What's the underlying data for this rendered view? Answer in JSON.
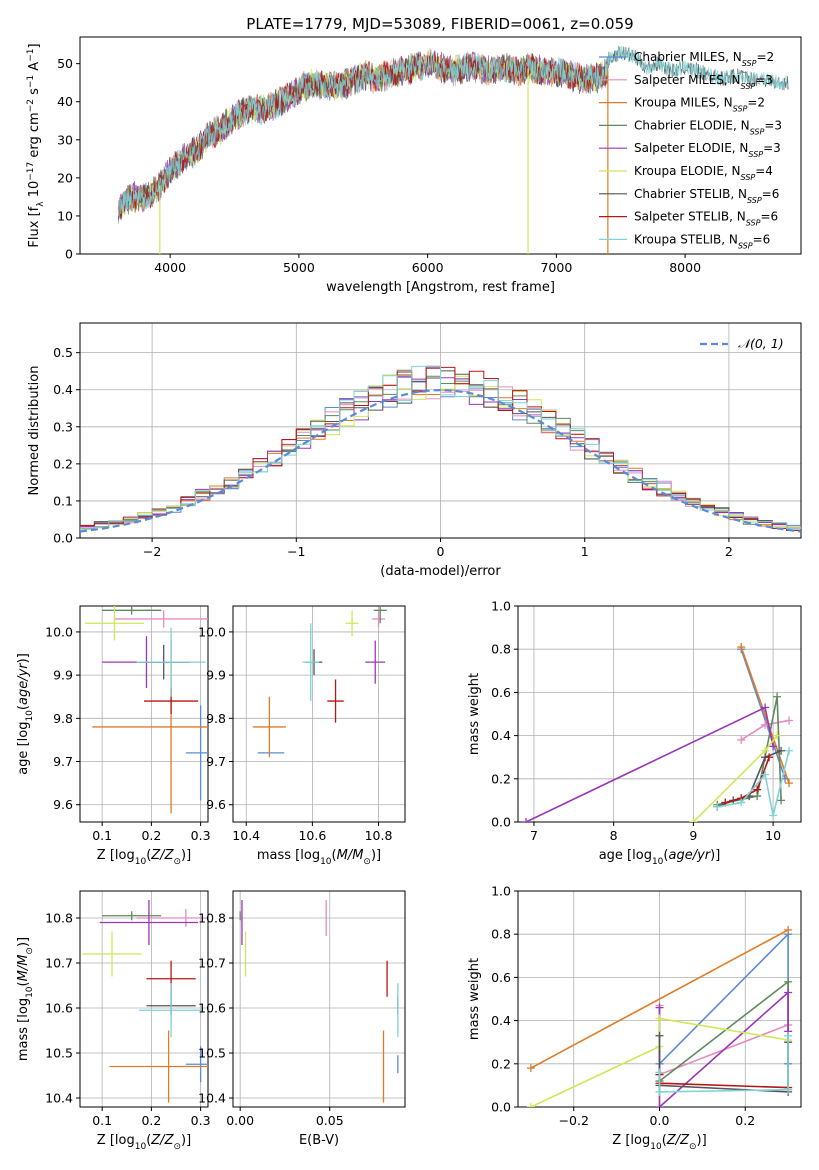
{
  "figure_title": "PLATE=1779, MJD=53089, FIBERID=0061, z=0.059",
  "colors": {
    "Chabrier MILES": "#5b8bd6",
    "Salpeter MILES": "#e58bc2",
    "Kroupa MILES": "#e07b27",
    "Chabrier ELODIE": "#5e8a5e",
    "Salpeter ELODIE": "#9b36b7",
    "Kroupa ELODIE": "#cfe85a",
    "Chabrier STELIB": "#555555",
    "Salpeter STELIB": "#b51717",
    "Kroupa STELIB": "#7ed3d6"
  },
  "chart_data": [
    {
      "id": "spectrum",
      "type": "line",
      "title": "",
      "xlabel": "wavelength [Angstrom, rest frame]",
      "ylabel": "Flux [f_λ 10^-17 erg cm^-2 s^-1 A^-1]",
      "xlim": [
        3300,
        8900
      ],
      "ylim": [
        0,
        57
      ],
      "xticks": [
        4000,
        5000,
        6000,
        7000,
        8000
      ],
      "yticks": [
        0,
        10,
        20,
        30,
        40,
        50
      ],
      "grid": false,
      "legend_position": "right",
      "continuum": {
        "x": [
          3600,
          3700,
          3800,
          3900,
          4000,
          4100,
          4200,
          4300,
          4400,
          4500,
          4600,
          4700,
          4800,
          4900,
          5000,
          5100,
          5200,
          5300,
          5400,
          5500,
          5600,
          5700,
          5800,
          5900,
          6000,
          6100,
          6200,
          6300,
          6400,
          6500,
          6600,
          6700,
          6800,
          6900,
          7000,
          7100,
          7200,
          7300,
          7400
        ],
        "y": [
          12,
          15,
          15,
          17,
          22,
          25,
          27,
          31,
          33,
          36,
          38,
          38,
          39,
          41,
          43,
          45,
          44,
          44,
          45,
          47,
          46,
          47,
          48,
          49,
          50,
          49,
          48,
          49,
          49,
          48,
          49,
          48,
          49,
          48,
          48,
          47,
          46,
          46,
          48
        ]
      },
      "stelib_extension": {
        "x": [
          7400,
          7500,
          7600,
          7700,
          7800,
          7900,
          8000,
          8100,
          8200,
          8300,
          8400,
          8500,
          8600,
          8700,
          8800
        ],
        "y": [
          51,
          53,
          52,
          49,
          50,
          48,
          49,
          48,
          47,
          46,
          47,
          46,
          46,
          45,
          45
        ]
      },
      "series": [
        {
          "name": "Chabrier MILES",
          "nssp": "2"
        },
        {
          "name": "Salpeter MILES",
          "nssp": "3"
        },
        {
          "name": "Kroupa MILES",
          "nssp": "2"
        },
        {
          "name": "Chabrier ELODIE",
          "nssp": "3"
        },
        {
          "name": "Salpeter ELODIE",
          "nssp": "3"
        },
        {
          "name": "Kroupa ELODIE",
          "nssp": "4"
        },
        {
          "name": "Chabrier STELIB",
          "nssp": "6"
        },
        {
          "name": "Salpeter STELIB",
          "nssp": "6"
        },
        {
          "name": "Kroupa STELIB",
          "nssp": "6"
        }
      ],
      "dropouts": [
        {
          "series": "Kroupa ELODIE",
          "x": 3920
        },
        {
          "series": "Kroupa ELODIE",
          "x": 6780
        },
        {
          "series": "Kroupa MILES",
          "x": 7400
        }
      ]
    },
    {
      "id": "residual-histogram",
      "type": "histogram",
      "title": "",
      "xlabel": "(data-model)/error",
      "ylabel": "Normed distribution",
      "xlim": [
        -2.5,
        2.5
      ],
      "ylim": [
        0,
        0.58
      ],
      "xticks": [
        -2,
        -1,
        0,
        1,
        2
      ],
      "yticks": [
        0.0,
        0.1,
        0.2,
        0.3,
        0.4,
        0.5
      ],
      "grid": true,
      "legend_position": "upper right",
      "reference": {
        "name": "𝒩(0, 1)",
        "mean": 0,
        "sigma": 1
      },
      "bin_edges_start": -2.5,
      "bin_width": 0.1,
      "bin_count": 50
    },
    {
      "id": "age-vs-Z",
      "type": "errorbar",
      "xlabel": "Z [log10(Z/Z⊙)]",
      "ylabel": "age  [log10(age/yr)]",
      "xlim": [
        0.055,
        0.315
      ],
      "ylim": [
        9.56,
        10.06
      ],
      "xticks": [
        0.1,
        0.2,
        0.3
      ],
      "yticks": [
        9.6,
        9.7,
        9.8,
        9.9,
        10.0
      ],
      "grid": true,
      "points": [
        {
          "series": "Chabrier MILES",
          "x": 0.3,
          "y": 9.72,
          "xerr": 0.03,
          "yerr": 0.11
        },
        {
          "series": "Salpeter MILES",
          "x": 0.225,
          "y": 10.03,
          "xerr": 0.1,
          "yerr": 0.02
        },
        {
          "series": "Kroupa MILES",
          "x": 0.24,
          "y": 9.78,
          "xerr": 0.16,
          "yerr": 0.2
        },
        {
          "series": "Chabrier ELODIE",
          "x": 0.16,
          "y": 10.05,
          "xerr": 0.06,
          "yerr": 0.01
        },
        {
          "series": "Salpeter ELODIE",
          "x": 0.19,
          "y": 9.93,
          "xerr": 0.09,
          "yerr": 0.06
        },
        {
          "series": "Kroupa ELODIE",
          "x": 0.125,
          "y": 10.02,
          "xerr": 0.06,
          "yerr": 0.04
        },
        {
          "series": "Chabrier STELIB",
          "x": 0.225,
          "y": 9.93,
          "xerr": 0.05,
          "yerr": 0.04
        },
        {
          "series": "Salpeter STELIB",
          "x": 0.24,
          "y": 9.84,
          "xerr": 0.055,
          "yerr": 0.03
        },
        {
          "series": "Kroupa STELIB",
          "x": 0.24,
          "y": 9.93,
          "xerr": 0.07,
          "yerr": 0.08
        }
      ]
    },
    {
      "id": "age-vs-mass",
      "type": "errorbar",
      "xlabel": "mass [log10(M/M⊙)]",
      "ylabel": "",
      "xlim": [
        10.36,
        10.88
      ],
      "ylim": [
        9.56,
        10.06
      ],
      "xticks": [
        10.4,
        10.6,
        10.8
      ],
      "yticks": [
        9.6,
        9.7,
        9.8,
        9.9,
        10.0
      ],
      "grid": true,
      "points": [
        {
          "series": "Chabrier MILES",
          "x": 10.475,
          "y": 9.72,
          "xerr": 0.04,
          "yerr": 0.0
        },
        {
          "series": "Salpeter MILES",
          "x": 10.8,
          "y": 10.03,
          "xerr": 0.02,
          "yerr": 0.02
        },
        {
          "series": "Kroupa MILES",
          "x": 10.47,
          "y": 9.78,
          "xerr": 0.05,
          "yerr": 0.07
        },
        {
          "series": "Chabrier ELODIE",
          "x": 10.805,
          "y": 10.05,
          "xerr": 0.02,
          "yerr": 0.03
        },
        {
          "series": "Salpeter ELODIE",
          "x": 10.79,
          "y": 9.93,
          "xerr": 0.03,
          "yerr": 0.05
        },
        {
          "series": "Kroupa ELODIE",
          "x": 10.72,
          "y": 10.02,
          "xerr": 0.02,
          "yerr": 0.03
        },
        {
          "series": "Chabrier STELIB",
          "x": 10.605,
          "y": 9.93,
          "xerr": 0.025,
          "yerr": 0.03
        },
        {
          "series": "Salpeter STELIB",
          "x": 10.67,
          "y": 9.84,
          "xerr": 0.025,
          "yerr": 0.05
        },
        {
          "series": "Kroupa STELIB",
          "x": 10.595,
          "y": 9.93,
          "xerr": 0.025,
          "yerr": 0.09
        }
      ]
    },
    {
      "id": "mass-weight-vs-age",
      "type": "line",
      "xlabel": "age  [log10(age/yr)]",
      "ylabel": "mass weight",
      "xlim": [
        6.8,
        10.35
      ],
      "ylim": [
        0,
        1.0
      ],
      "xticks": [
        7,
        8,
        9,
        10
      ],
      "yticks": [
        0.0,
        0.2,
        0.4,
        0.6,
        0.8,
        1.0
      ],
      "grid": true,
      "series": [
        {
          "name": "Chabrier MILES",
          "x": [
            9.6,
            10.15
          ],
          "y": [
            0.8,
            0.2
          ]
        },
        {
          "name": "Salpeter MILES",
          "x": [
            9.6,
            9.9,
            10.2
          ],
          "y": [
            0.38,
            0.45,
            0.47
          ]
        },
        {
          "name": "Kroupa MILES",
          "x": [
            9.6,
            10.2
          ],
          "y": [
            0.81,
            0.18
          ]
        },
        {
          "name": "Chabrier ELODIE",
          "x": [
            9.3,
            9.8,
            10.05,
            10.1
          ],
          "y": [
            0.08,
            0.12,
            0.58,
            0.1
          ]
        },
        {
          "name": "Salpeter ELODIE",
          "x": [
            6.9,
            9.9,
            10.0
          ],
          "y": [
            0.0,
            0.53,
            0.35
          ]
        },
        {
          "name": "Kroupa ELODIE",
          "x": [
            9.0,
            9.9,
            10.05
          ],
          "y": [
            0.0,
            0.33,
            0.4
          ]
        },
        {
          "name": "Chabrier STELIB",
          "x": [
            9.3,
            9.5,
            9.7,
            9.9,
            10.1
          ],
          "y": [
            0.07,
            0.1,
            0.12,
            0.3,
            0.33
          ]
        },
        {
          "name": "Salpeter STELIB",
          "x": [
            9.4,
            9.6,
            9.8,
            9.95
          ],
          "y": [
            0.09,
            0.11,
            0.15,
            0.3
          ]
        },
        {
          "name": "Kroupa STELIB",
          "x": [
            9.3,
            9.6,
            9.9,
            10.0,
            10.2
          ],
          "y": [
            0.07,
            0.09,
            0.22,
            0.03,
            0.33
          ]
        }
      ]
    },
    {
      "id": "mass-vs-Z",
      "type": "errorbar",
      "xlabel": "Z [log10(Z/Z⊙)]",
      "ylabel": "mass [log10(M/M⊙)]",
      "xlim": [
        0.055,
        0.315
      ],
      "ylim": [
        10.38,
        10.86
      ],
      "xticks": [
        0.1,
        0.2,
        0.3
      ],
      "yticks": [
        10.4,
        10.5,
        10.6,
        10.7,
        10.8
      ],
      "grid": true,
      "points": [
        {
          "series": "Chabrier MILES",
          "x": 0.3,
          "y": 10.475,
          "xerr": 0.03,
          "yerr": 0.04
        },
        {
          "series": "Salpeter MILES",
          "x": 0.27,
          "y": 10.8,
          "xerr": 0.1,
          "yerr": 0.02
        },
        {
          "series": "Kroupa MILES",
          "x": 0.235,
          "y": 10.47,
          "xerr": 0.12,
          "yerr": 0.08
        },
        {
          "series": "Chabrier ELODIE",
          "x": 0.16,
          "y": 10.805,
          "xerr": 0.06,
          "yerr": 0.01
        },
        {
          "series": "Salpeter ELODIE",
          "x": 0.195,
          "y": 10.79,
          "xerr": 0.1,
          "yerr": 0.05
        },
        {
          "series": "Kroupa ELODIE",
          "x": 0.12,
          "y": 10.72,
          "xerr": 0.06,
          "yerr": 0.05
        },
        {
          "series": "Chabrier STELIB",
          "x": 0.24,
          "y": 10.605,
          "xerr": 0.05,
          "yerr": 0.02
        },
        {
          "series": "Salpeter STELIB",
          "x": 0.24,
          "y": 10.665,
          "xerr": 0.05,
          "yerr": 0.04
        },
        {
          "series": "Kroupa STELIB",
          "x": 0.24,
          "y": 10.595,
          "xerr": 0.065,
          "yerr": 0.06
        }
      ]
    },
    {
      "id": "mass-vs-EBV",
      "type": "errorbar",
      "xlabel": "E(B-V)",
      "ylabel": "",
      "xlim": [
        -0.004,
        0.092
      ],
      "ylim": [
        10.38,
        10.86
      ],
      "xticks": [
        0.0,
        0.05
      ],
      "yticks": [
        10.4,
        10.5,
        10.6,
        10.7,
        10.8
      ],
      "grid": true,
      "points": [
        {
          "series": "Chabrier MILES",
          "x": 0.088,
          "y": 10.475,
          "xerr": 0,
          "yerr": 0.02
        },
        {
          "series": "Salpeter MILES",
          "x": 0.048,
          "y": 10.8,
          "xerr": 0,
          "yerr": 0.04
        },
        {
          "series": "Kroupa MILES",
          "x": 0.08,
          "y": 10.47,
          "xerr": 0,
          "yerr": 0.08
        },
        {
          "series": "Chabrier ELODIE",
          "x": 0.0,
          "y": 10.805,
          "xerr": 0,
          "yerr": 0.01
        },
        {
          "series": "Salpeter ELODIE",
          "x": 0.001,
          "y": 10.79,
          "xerr": 0,
          "yerr": 0.05
        },
        {
          "series": "Kroupa ELODIE",
          "x": 0.003,
          "y": 10.72,
          "xerr": 0,
          "yerr": 0.05
        },
        {
          "series": "Chabrier STELIB",
          "x": 0.088,
          "y": 10.605,
          "xerr": 0,
          "yerr": 0.02
        },
        {
          "series": "Salpeter STELIB",
          "x": 0.082,
          "y": 10.665,
          "xerr": 0,
          "yerr": 0.04
        },
        {
          "series": "Kroupa STELIB",
          "x": 0.088,
          "y": 10.595,
          "xerr": 0,
          "yerr": 0.06
        }
      ]
    },
    {
      "id": "mass-weight-vs-Z",
      "type": "line",
      "xlabel": "Z [log10(Z/Z⊙)]",
      "ylabel": "mass weight",
      "xlim": [
        -0.33,
        0.33
      ],
      "ylim": [
        0,
        1.0
      ],
      "xticks": [
        -0.2,
        0.0,
        0.2
      ],
      "yticks": [
        0.0,
        0.2,
        0.4,
        0.6,
        0.8,
        1.0
      ],
      "grid": true,
      "series": [
        {
          "name": "Chabrier MILES",
          "x": [
            0.0,
            0.3,
            0.3
          ],
          "y": [
            0.2,
            0.8,
            0.2
          ]
        },
        {
          "name": "Salpeter MILES",
          "x": [
            0.0,
            0.0,
            0.3
          ],
          "y": [
            0.47,
            0.15,
            0.38
          ]
        },
        {
          "name": "Kroupa MILES",
          "x": [
            -0.3,
            0.3
          ],
          "y": [
            0.18,
            0.82
          ]
        },
        {
          "name": "Chabrier ELODIE",
          "x": [
            0.0,
            0.3,
            0.3
          ],
          "y": [
            0.12,
            0.58,
            0.08
          ]
        },
        {
          "name": "Salpeter ELODIE",
          "x": [
            0.0,
            0.0,
            0.3,
            0.3
          ],
          "y": [
            0.46,
            0.0,
            0.53,
            0.35
          ]
        },
        {
          "name": "Kroupa ELODIE",
          "x": [
            -0.3,
            0.0,
            0.0,
            0.3
          ],
          "y": [
            0.0,
            0.28,
            0.41,
            0.31
          ]
        },
        {
          "name": "Chabrier STELIB",
          "x": [
            0.0,
            0.0,
            0.3,
            0.3
          ],
          "y": [
            0.33,
            0.1,
            0.07,
            0.3
          ]
        },
        {
          "name": "Salpeter STELIB",
          "x": [
            0.0,
            0.0,
            0.3
          ],
          "y": [
            0.15,
            0.11,
            0.09
          ]
        },
        {
          "name": "Kroupa STELIB",
          "x": [
            0.0,
            0.0,
            0.3,
            0.3
          ],
          "y": [
            0.16,
            0.07,
            0.08,
            0.33
          ]
        }
      ]
    }
  ]
}
